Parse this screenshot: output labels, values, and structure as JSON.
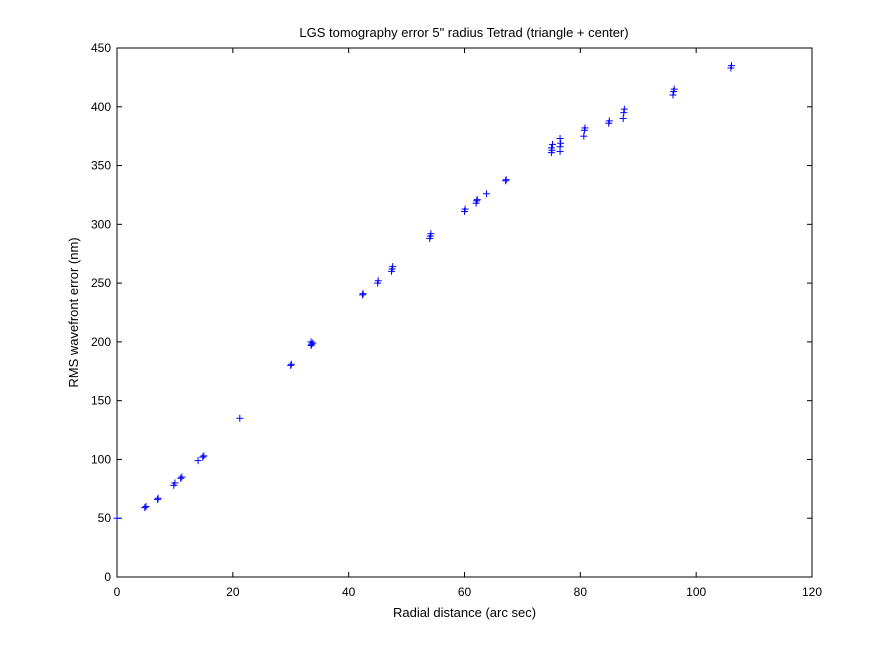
{
  "chart_data": {
    "type": "scatter",
    "title": "LGS tomography error 5\" radius Tetrad (triangle + center)",
    "xlabel": "Radial distance (arc sec)",
    "ylabel": "RMS wavefront error (nm)",
    "xlim": [
      0,
      120
    ],
    "ylim": [
      0,
      450
    ],
    "xticks": [
      0,
      20,
      40,
      60,
      80,
      100,
      120
    ],
    "yticks": [
      0,
      50,
      100,
      150,
      200,
      250,
      300,
      350,
      400,
      450
    ],
    "grid": false,
    "marker": "+",
    "marker_color": "#0000ff",
    "series": [
      {
        "points": [
          [
            0,
            50
          ],
          [
            4.8,
            59
          ],
          [
            5.0,
            60
          ],
          [
            7.0,
            66
          ],
          [
            7.1,
            67
          ],
          [
            9.8,
            78
          ],
          [
            10.0,
            80
          ],
          [
            11.0,
            84
          ],
          [
            11.2,
            85
          ],
          [
            14.0,
            99
          ],
          [
            14.8,
            102
          ],
          [
            15.0,
            103
          ],
          [
            21.2,
            135
          ],
          [
            30.0,
            180
          ],
          [
            30.1,
            181
          ],
          [
            33.5,
            197
          ],
          [
            33.6,
            198
          ],
          [
            33.8,
            199
          ],
          [
            33.5,
            200
          ],
          [
            42.4,
            240
          ],
          [
            42.5,
            241
          ],
          [
            45.0,
            250
          ],
          [
            45.1,
            252
          ],
          [
            47.4,
            260
          ],
          [
            47.5,
            262
          ],
          [
            47.6,
            264
          ],
          [
            54.0,
            288
          ],
          [
            54.1,
            290
          ],
          [
            54.2,
            292
          ],
          [
            60.0,
            311
          ],
          [
            60.1,
            313
          ],
          [
            62.0,
            318
          ],
          [
            62.1,
            320
          ],
          [
            62.2,
            321
          ],
          [
            63.8,
            326
          ],
          [
            67.1,
            337
          ],
          [
            67.2,
            338
          ],
          [
            75.0,
            361
          ],
          [
            75.1,
            363
          ],
          [
            75.0,
            365
          ],
          [
            75.2,
            368
          ],
          [
            76.5,
            362
          ],
          [
            76.5,
            366
          ],
          [
            76.6,
            369
          ],
          [
            76.5,
            373
          ],
          [
            80.6,
            375
          ],
          [
            80.7,
            380
          ],
          [
            80.8,
            382
          ],
          [
            84.9,
            386
          ],
          [
            85.0,
            388
          ],
          [
            87.4,
            390
          ],
          [
            87.5,
            395
          ],
          [
            87.6,
            398
          ],
          [
            96.0,
            410
          ],
          [
            96.1,
            413
          ],
          [
            96.2,
            415
          ],
          [
            106.0,
            433
          ],
          [
            106.1,
            435
          ]
        ]
      }
    ]
  }
}
